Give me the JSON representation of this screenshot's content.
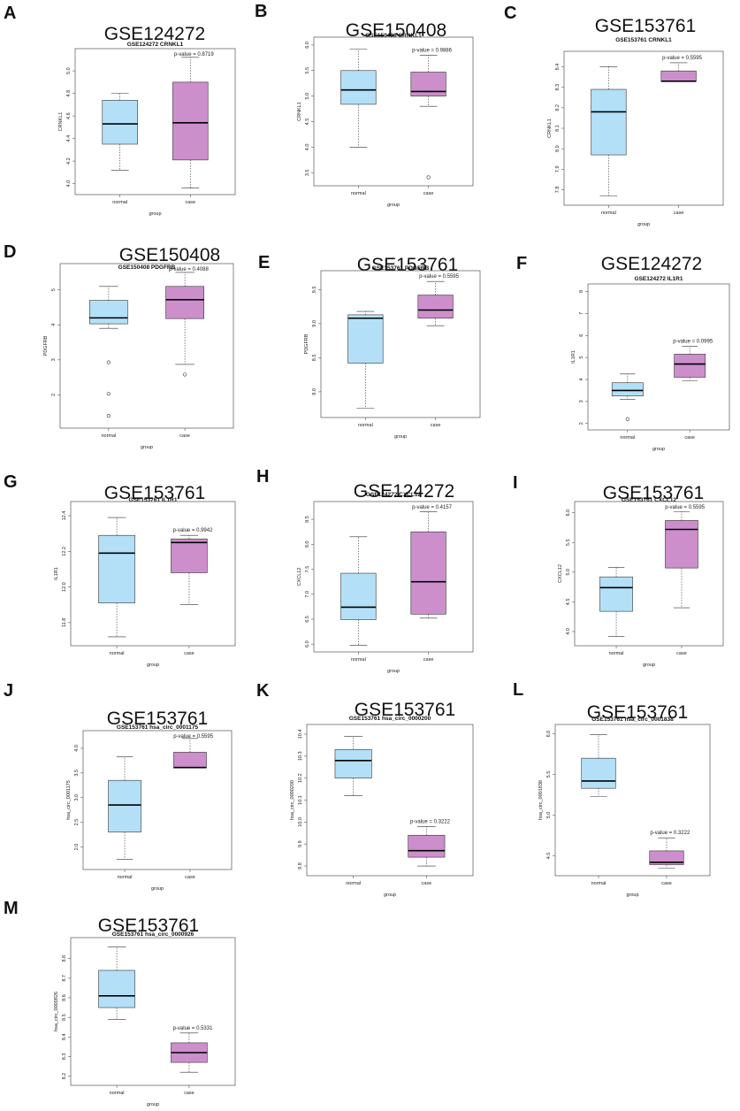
{
  "colors": {
    "normal_fill": "#b3e0f7",
    "case_fill": "#cc8fcc",
    "stroke": "#333333",
    "frame": "#555555"
  },
  "chart_data": [
    {
      "letter": "A",
      "title": "GSE124272",
      "subtitle": "GSE124272 CRNKL1",
      "type": "box",
      "ylabel": "CRNKL1",
      "xlabel": "group",
      "categories": [
        "normal",
        "case"
      ],
      "ylim": [
        3.95,
        5.15
      ],
      "yticks": [
        4.0,
        4.2,
        4.4,
        4.6,
        4.8,
        5.0
      ],
      "ytick_labels": [
        "4.0",
        "4.2",
        "4.4",
        "4.6",
        "4.8",
        "5.0"
      ],
      "boxes": [
        {
          "min": 4.12,
          "q1": 4.35,
          "median": 4.53,
          "q3": 4.74,
          "max": 4.8,
          "outliers": []
        },
        {
          "min": 3.96,
          "q1": 4.21,
          "median": 4.54,
          "q3": 4.9,
          "max": 5.12,
          "outliers": []
        }
      ],
      "pvalue": "p-value = 0.8719"
    },
    {
      "letter": "B",
      "title": "GSE150408",
      "subtitle": "GSE150408 CRNKL1",
      "type": "box",
      "ylabel": "CRNKL1",
      "xlabel": "group",
      "categories": [
        "normal",
        "case"
      ],
      "ylim": [
        3.35,
        6.05
      ],
      "yticks": [
        3.5,
        4.0,
        4.5,
        5.0,
        5.5,
        6.0
      ],
      "ytick_labels": [
        "3.5",
        "4.0",
        "4.5",
        "5.0",
        "5.5",
        "6.0"
      ],
      "boxes": [
        {
          "min": 4.0,
          "q1": 4.84,
          "median": 5.12,
          "q3": 5.5,
          "max": 5.92,
          "outliers": []
        },
        {
          "min": 4.8,
          "q1": 5.0,
          "median": 5.09,
          "q3": 5.47,
          "max": 5.8,
          "outliers": [
            3.41
          ]
        }
      ],
      "pvalue": "p-value = 0.9886"
    },
    {
      "letter": "C",
      "title": "GSE153761",
      "subtitle": "GSE153761 CRNKL1",
      "type": "box",
      "ylabel": "CRNKL1",
      "xlabel": "group",
      "categories": [
        "normal",
        "case"
      ],
      "ylim": [
        7.75,
        8.45
      ],
      "yticks": [
        7.8,
        7.9,
        8.0,
        8.1,
        8.2,
        8.3,
        8.4
      ],
      "ytick_labels": [
        "7.8",
        "7.9",
        "8.0",
        "8.1",
        "8.2",
        "8.3",
        "8.4"
      ],
      "boxes": [
        {
          "min": 7.77,
          "q1": 7.97,
          "median": 8.18,
          "q3": 8.29,
          "max": 8.4,
          "outliers": []
        },
        {
          "min": 8.33,
          "q1": 8.33,
          "median": 8.33,
          "q3": 8.38,
          "max": 8.42,
          "outliers": []
        }
      ],
      "pvalue": "p-value = 0.5595"
    },
    {
      "letter": "D",
      "title": "GSE150408",
      "subtitle": "GSE150408 PDGFRB",
      "type": "box",
      "ylabel": "PDGFRB",
      "xlabel": "group",
      "categories": [
        "normal",
        "case"
      ],
      "ylim": [
        1.2,
        5.6
      ],
      "yticks": [
        2,
        3,
        4,
        5
      ],
      "ytick_labels": [
        "2",
        "3",
        "4",
        "5"
      ],
      "boxes": [
        {
          "min": 3.9,
          "q1": 4.03,
          "median": 4.2,
          "q3": 4.7,
          "max": 5.1,
          "outliers": [
            2.93,
            2.03,
            1.4
          ]
        },
        {
          "min": 2.87,
          "q1": 4.18,
          "median": 4.72,
          "q3": 5.1,
          "max": 5.5,
          "outliers": [
            2.58
          ]
        }
      ],
      "pvalue": "p-value = 0.4088"
    },
    {
      "letter": "E",
      "title": "GSE153761",
      "subtitle": "GSE153761 PDGFRB",
      "type": "box",
      "ylabel": "PDGFRB",
      "xlabel": "group",
      "categories": [
        "normal",
        "case"
      ],
      "ylim": [
        7.7,
        9.7
      ],
      "yticks": [
        8.0,
        8.5,
        9.0,
        9.5
      ],
      "ytick_labels": [
        "8.0",
        "8.5",
        "9.0",
        "9.5"
      ],
      "boxes": [
        {
          "min": 7.76,
          "q1": 8.42,
          "median": 9.08,
          "q3": 9.13,
          "max": 9.18,
          "outliers": []
        },
        {
          "min": 8.97,
          "q1": 9.08,
          "median": 9.2,
          "q3": 9.42,
          "max": 9.62,
          "outliers": []
        }
      ],
      "pvalue": "p-value = 0.5595"
    },
    {
      "letter": "F",
      "title": "GSE124272",
      "subtitle": "GSE124272 IL1R1",
      "type": "box",
      "ylabel": "IL1R1",
      "xlabel": "group",
      "categories": [
        "normal",
        "case"
      ],
      "ylim": [
        1.95,
        8.1
      ],
      "yticks": [
        2,
        3,
        4,
        5,
        6,
        7,
        8
      ],
      "ytick_labels": [
        "2",
        "3",
        "4",
        "5",
        "6",
        "7",
        "8"
      ],
      "boxes": [
        {
          "min": 3.1,
          "q1": 3.25,
          "median": 3.5,
          "q3": 3.85,
          "max": 4.25,
          "outliers": [
            2.2
          ]
        },
        {
          "min": 3.95,
          "q1": 4.1,
          "median": 4.7,
          "q3": 5.15,
          "max": 5.5,
          "outliers": []
        }
      ],
      "pvalue": "p-value = 0.0995"
    },
    {
      "letter": "G",
      "title": "GSE153761",
      "subtitle": "GSE153761 IL1R1",
      "type": "box",
      "ylabel": "IL1R1",
      "xlabel": "group",
      "categories": [
        "normal",
        "case"
      ],
      "ylim": [
        11.7,
        12.45
      ],
      "yticks": [
        11.8,
        12.0,
        12.2,
        12.4
      ],
      "ytick_labels": [
        "11.8",
        "12.0",
        "12.2",
        "12.4"
      ],
      "boxes": [
        {
          "min": 11.72,
          "q1": 11.91,
          "median": 12.19,
          "q3": 12.29,
          "max": 12.39,
          "outliers": []
        },
        {
          "min": 11.9,
          "q1": 12.08,
          "median": 12.25,
          "q3": 12.27,
          "max": 12.29,
          "outliers": []
        }
      ],
      "pvalue": "p-value = 0.9942"
    },
    {
      "letter": "H",
      "title": "GSE124272",
      "subtitle": "GSE124272 CXCL12",
      "type": "box",
      "ylabel": "CXCL12",
      "xlabel": "group",
      "categories": [
        "normal",
        "case"
      ],
      "ylim": [
        5.95,
        8.75
      ],
      "yticks": [
        6.0,
        6.5,
        7.0,
        7.5,
        8.0,
        8.5
      ],
      "ytick_labels": [
        "6.0",
        "6.5",
        "7.0",
        "7.5",
        "8.0",
        "8.5"
      ],
      "boxes": [
        {
          "min": 5.98,
          "q1": 6.49,
          "median": 6.74,
          "q3": 7.42,
          "max": 8.15,
          "outliers": []
        },
        {
          "min": 6.52,
          "q1": 6.6,
          "median": 7.25,
          "q3": 8.25,
          "max": 8.65,
          "outliers": []
        }
      ],
      "pvalue": "p-value = 0.4157"
    },
    {
      "letter": "I",
      "title": "GSE153761",
      "subtitle": "GSE153761 CXCL12",
      "type": "box",
      "ylabel": "CXCL12",
      "xlabel": "group",
      "categories": [
        "normal",
        "case"
      ],
      "ylim": [
        3.85,
        6.1
      ],
      "yticks": [
        4.0,
        4.5,
        5.0,
        5.5,
        6.0
      ],
      "ytick_labels": [
        "4.0",
        "4.5",
        "5.0",
        "5.5",
        "6.0"
      ],
      "boxes": [
        {
          "min": 3.92,
          "q1": 4.34,
          "median": 4.74,
          "q3": 4.92,
          "max": 5.08,
          "outliers": []
        },
        {
          "min": 4.4,
          "q1": 5.07,
          "median": 5.72,
          "q3": 5.87,
          "max": 6.02,
          "outliers": []
        }
      ],
      "pvalue": "p-value = 0.5595"
    },
    {
      "letter": "J",
      "title": "GSE153761",
      "subtitle": "GSE153761 hsa_circ_0001175",
      "type": "box",
      "ylabel": "hsa_circ_0001175",
      "xlabel": "group",
      "categories": [
        "normal",
        "case"
      ],
      "ylim": [
        1.65,
        4.25
      ],
      "yticks": [
        2.0,
        2.5,
        3.0,
        3.5,
        4.0
      ],
      "ytick_labels": [
        "2.0",
        "2.5",
        "3.0",
        "3.5",
        "4.0"
      ],
      "boxes": [
        {
          "min": 1.75,
          "q1": 2.3,
          "median": 2.85,
          "q3": 3.35,
          "max": 3.83,
          "outliers": []
        },
        {
          "min": 3.6,
          "q1": 3.6,
          "median": 3.61,
          "q3": 3.92,
          "max": 4.2,
          "outliers": []
        }
      ],
      "pvalue": "p-value = 0.5595"
    },
    {
      "letter": "K",
      "title": "GSE153761",
      "subtitle": "GSE153761 hsa_circ_0000200",
      "type": "box",
      "ylabel": "hsa_circ_0000200",
      "xlabel": "group",
      "categories": [
        "normal",
        "case"
      ],
      "ylim": [
        9.78,
        10.42
      ],
      "yticks": [
        9.8,
        9.9,
        10.0,
        10.1,
        10.2,
        10.3,
        10.4
      ],
      "ytick_labels": [
        "9.8",
        "9.9",
        "10.0",
        "10.1",
        "10.2",
        "10.3",
        "10.4"
      ],
      "boxes": [
        {
          "min": 10.12,
          "q1": 10.2,
          "median": 10.28,
          "q3": 10.33,
          "max": 10.39,
          "outliers": []
        },
        {
          "min": 9.8,
          "q1": 9.84,
          "median": 9.87,
          "q3": 9.94,
          "max": 9.98,
          "outliers": []
        }
      ],
      "pvalue": "p-value = 0.3222"
    },
    {
      "letter": "L",
      "title": "GSE153761",
      "subtitle": "GSE153761 hsa_circ_0001838",
      "type": "box",
      "ylabel": "hsa_circ_0001838",
      "xlabel": "group",
      "categories": [
        "normal",
        "case"
      ],
      "ylim": [
        4.32,
        6.05
      ],
      "yticks": [
        4.5,
        5.0,
        5.5,
        6.0
      ],
      "ytick_labels": [
        "4.5",
        "5.0",
        "5.5",
        "6.0"
      ],
      "boxes": [
        {
          "min": 5.23,
          "q1": 5.33,
          "median": 5.42,
          "q3": 5.7,
          "max": 5.99,
          "outliers": []
        },
        {
          "min": 4.35,
          "q1": 4.39,
          "median": 4.42,
          "q3": 4.56,
          "max": 4.72,
          "outliers": []
        }
      ],
      "pvalue": "p-value = 0.3222"
    },
    {
      "letter": "M",
      "title": "GSE153761",
      "subtitle": "GSE153761 hsa_circ_0000926",
      "type": "box",
      "ylabel": "hsa_circ_0000926",
      "xlabel": "group",
      "categories": [
        "normal",
        "case"
      ],
      "ylim": [
        8.18,
        8.88
      ],
      "yticks": [
        8.2,
        8.3,
        8.4,
        8.5,
        8.6,
        8.7,
        8.8
      ],
      "ytick_labels": [
        "8.2",
        "8.3",
        "8.4",
        "8.5",
        "8.6",
        "8.7",
        "8.8"
      ],
      "boxes": [
        {
          "min": 8.49,
          "q1": 8.55,
          "median": 8.61,
          "q3": 8.74,
          "max": 8.86,
          "outliers": []
        },
        {
          "min": 8.22,
          "q1": 8.27,
          "median": 8.32,
          "q3": 8.37,
          "max": 8.42,
          "outliers": []
        }
      ],
      "pvalue": "p-value = 0.5331"
    }
  ]
}
